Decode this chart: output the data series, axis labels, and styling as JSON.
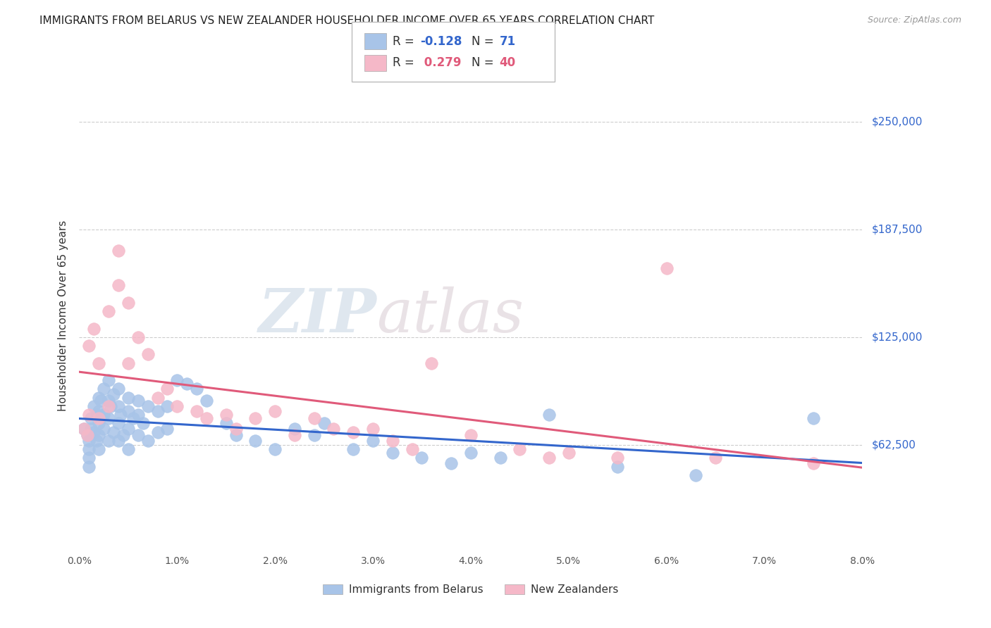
{
  "title": "IMMIGRANTS FROM BELARUS VS NEW ZEALANDER HOUSEHOLDER INCOME OVER 65 YEARS CORRELATION CHART",
  "source": "Source: ZipAtlas.com",
  "ylabel": "Householder Income Over 65 years",
  "ytick_labels": [
    "$62,500",
    "$125,000",
    "$187,500",
    "$250,000"
  ],
  "ytick_values": [
    62500,
    125000,
    187500,
    250000
  ],
  "ymin": 0,
  "ymax": 275000,
  "xmin": 0.0,
  "xmax": 0.08,
  "legend_blue_r": "-0.128",
  "legend_blue_n": "71",
  "legend_pink_r": "0.279",
  "legend_pink_n": "40",
  "legend_label_blue": "Immigrants from Belarus",
  "legend_label_pink": "New Zealanders",
  "watermark_zip": "ZIP",
  "watermark_atlas": "atlas",
  "blue_scatter_x": [
    0.0005,
    0.0008,
    0.001,
    0.001,
    0.001,
    0.001,
    0.0012,
    0.0012,
    0.0015,
    0.0015,
    0.0018,
    0.0018,
    0.002,
    0.002,
    0.002,
    0.002,
    0.002,
    0.0022,
    0.0025,
    0.0025,
    0.0025,
    0.003,
    0.003,
    0.003,
    0.003,
    0.0032,
    0.0035,
    0.0035,
    0.004,
    0.004,
    0.004,
    0.004,
    0.0042,
    0.0045,
    0.005,
    0.005,
    0.005,
    0.005,
    0.0055,
    0.006,
    0.006,
    0.006,
    0.0065,
    0.007,
    0.007,
    0.008,
    0.008,
    0.009,
    0.009,
    0.01,
    0.011,
    0.012,
    0.013,
    0.015,
    0.016,
    0.018,
    0.02,
    0.022,
    0.024,
    0.025,
    0.028,
    0.03,
    0.032,
    0.035,
    0.038,
    0.04,
    0.043,
    0.048,
    0.055,
    0.063,
    0.075
  ],
  "blue_scatter_y": [
    72000,
    68000,
    65000,
    60000,
    55000,
    50000,
    78000,
    72000,
    85000,
    70000,
    80000,
    65000,
    90000,
    82000,
    75000,
    68000,
    60000,
    88000,
    95000,
    80000,
    72000,
    100000,
    88000,
    78000,
    65000,
    85000,
    92000,
    70000,
    95000,
    85000,
    75000,
    65000,
    80000,
    68000,
    90000,
    82000,
    72000,
    60000,
    78000,
    88000,
    80000,
    68000,
    75000,
    85000,
    65000,
    82000,
    70000,
    85000,
    72000,
    100000,
    98000,
    95000,
    88000,
    75000,
    68000,
    65000,
    60000,
    72000,
    68000,
    75000,
    60000,
    65000,
    58000,
    55000,
    52000,
    58000,
    55000,
    80000,
    50000,
    45000,
    78000
  ],
  "pink_scatter_x": [
    0.0005,
    0.0008,
    0.001,
    0.001,
    0.0015,
    0.002,
    0.002,
    0.003,
    0.003,
    0.004,
    0.004,
    0.005,
    0.005,
    0.006,
    0.007,
    0.008,
    0.009,
    0.01,
    0.012,
    0.013,
    0.015,
    0.016,
    0.018,
    0.02,
    0.022,
    0.024,
    0.026,
    0.028,
    0.03,
    0.032,
    0.034,
    0.036,
    0.04,
    0.045,
    0.048,
    0.05,
    0.055,
    0.06,
    0.065,
    0.075
  ],
  "pink_scatter_y": [
    72000,
    68000,
    120000,
    80000,
    130000,
    110000,
    78000,
    140000,
    85000,
    175000,
    155000,
    145000,
    110000,
    125000,
    115000,
    90000,
    95000,
    85000,
    82000,
    78000,
    80000,
    72000,
    78000,
    82000,
    68000,
    78000,
    72000,
    70000,
    72000,
    65000,
    60000,
    110000,
    68000,
    60000,
    55000,
    58000,
    55000,
    165000,
    55000,
    52000
  ],
  "blue_line_color": "#3366cc",
  "pink_line_color": "#e05a7a",
  "blue_scatter_color": "#a8c4e8",
  "pink_scatter_color": "#f5b8c8",
  "title_fontsize": 11,
  "axis_color": "#3366cc",
  "grid_color": "#c8c8c8",
  "background_color": "#ffffff",
  "xtick_values": [
    0.0,
    0.01,
    0.02,
    0.03,
    0.04,
    0.05,
    0.06,
    0.07,
    0.08
  ],
  "xtick_labels": [
    "0.0%",
    "1.0%",
    "2.0%",
    "3.0%",
    "4.0%",
    "5.0%",
    "6.0%",
    "7.0%",
    "8.0%"
  ]
}
